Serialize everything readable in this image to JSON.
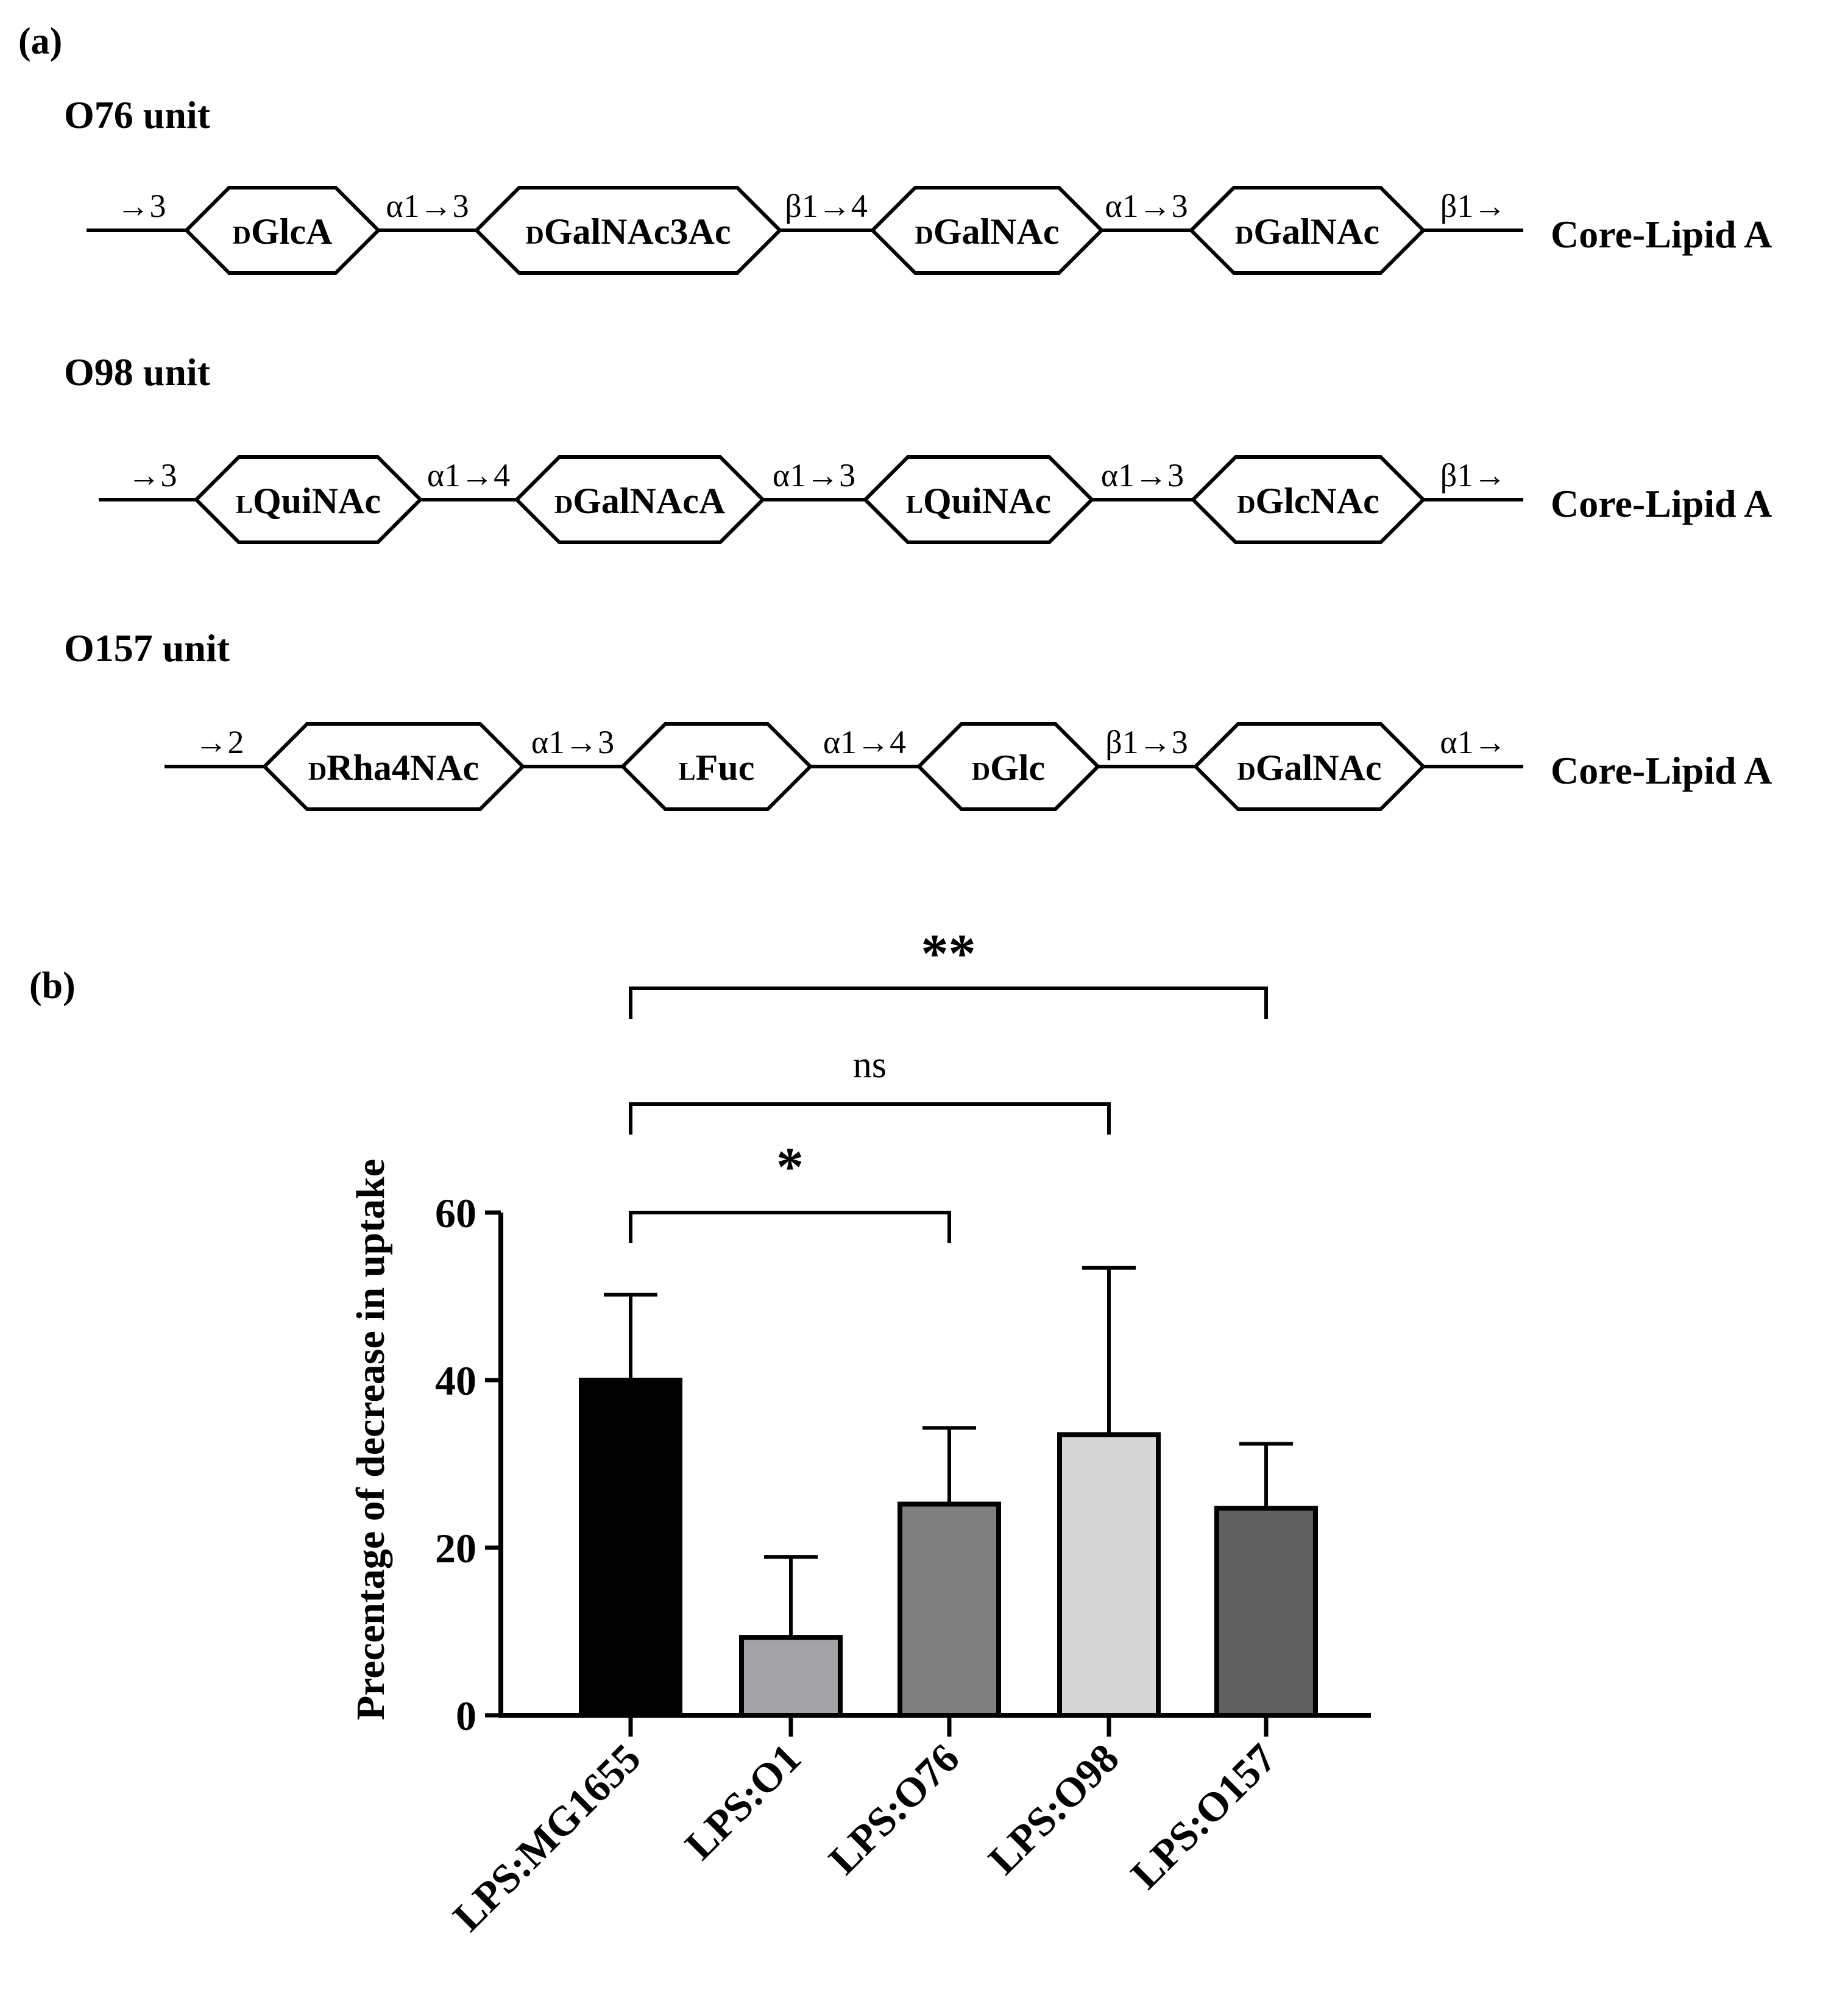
{
  "panel_a": {
    "label": "(a)",
    "terminal_label": "Core-Lipid A",
    "units": [
      {
        "title": "O76 unit",
        "start_link": "→3",
        "residues": [
          {
            "prefix": "D",
            "name": "GlcA"
          },
          {
            "prefix": "D",
            "name": "GalNAc3Ac"
          },
          {
            "prefix": "D",
            "name": "GalNAc"
          },
          {
            "prefix": "D",
            "name": "GalNAc"
          }
        ],
        "links": [
          "α1→3",
          "β1→4",
          "α1→3"
        ],
        "end_link": "β1→"
      },
      {
        "title": "O98 unit",
        "start_link": "→3",
        "residues": [
          {
            "prefix": "L",
            "name": "QuiNAc"
          },
          {
            "prefix": "D",
            "name": "GalNAcA"
          },
          {
            "prefix": "L",
            "name": "QuiNAc"
          },
          {
            "prefix": "D",
            "name": "GlcNAc"
          }
        ],
        "links": [
          "α1→4",
          "α1→3",
          "α1→3"
        ],
        "end_link": "β1→"
      },
      {
        "title": "O157 unit",
        "start_link": "→2",
        "residues": [
          {
            "prefix": "D",
            "name": "Rha4NAc"
          },
          {
            "prefix": "L",
            "name": "Fuc"
          },
          {
            "prefix": "D",
            "name": "Glc"
          },
          {
            "prefix": "D",
            "name": "GalNAc"
          }
        ],
        "links": [
          "α1→3",
          "α1→4",
          "β1→3"
        ],
        "end_link": "α1→"
      }
    ]
  },
  "panel_b": {
    "label": "(b)"
  },
  "chart_data": {
    "type": "bar",
    "categories": [
      "LPS:MG1655",
      "LPS:O1",
      "LPS:O76",
      "LPS:O98",
      "LPS:O157"
    ],
    "values": [
      40,
      9.3,
      25.2,
      33.5,
      24.7
    ],
    "errors": [
      10.2,
      9.6,
      9.1,
      19.9,
      7.7
    ],
    "bar_colors": [
      "#000000",
      "#a3a3a7",
      "#7f7f7f",
      "#d6d6d6",
      "#606060"
    ],
    "title": "",
    "xlabel": "",
    "ylabel": "Precentage of decrease in uptake",
    "ylim": [
      0,
      60
    ],
    "yticks": [
      0,
      20,
      40,
      60
    ],
    "grid": false,
    "significance": [
      {
        "from": "LPS:MG1655",
        "to": "LPS:O76",
        "label": "*"
      },
      {
        "from": "LPS:MG1655",
        "to": "LPS:O98",
        "label": "ns"
      },
      {
        "from": "LPS:MG1655",
        "to": "LPS:O157",
        "label": "**"
      }
    ]
  }
}
